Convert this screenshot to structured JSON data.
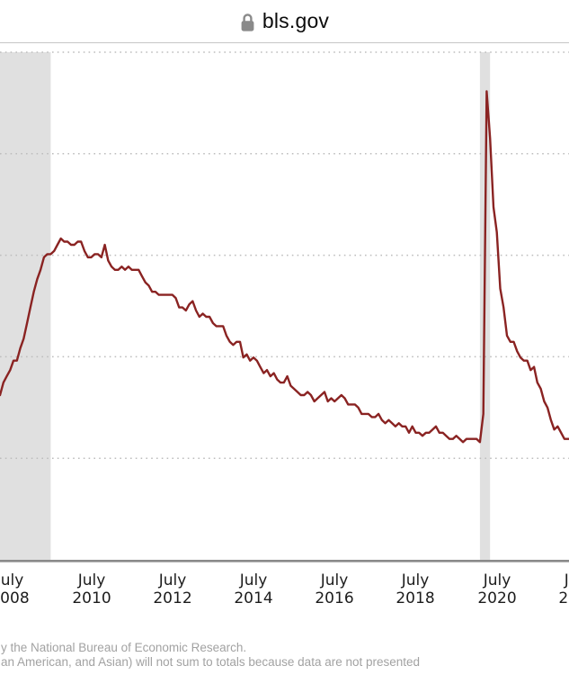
{
  "browser": {
    "url": "bls.gov",
    "lock_icon": "lock-icon",
    "lock_color": "#8a8a8a"
  },
  "chart_data": {
    "type": "line",
    "line_color": "#8a2322",
    "recession_band_color": "#e0e0e0",
    "grid": "horizontal-dotted",
    "legend_position": "none",
    "y_axis_tick_labels_visible": false,
    "frequency": "monthly",
    "start": {
      "year": 2008,
      "month": 4
    },
    "end": {
      "year": 2022,
      "month": 5
    },
    "series": [
      {
        "values": [
          5.0,
          5.4,
          5.6,
          5.8,
          6.1,
          6.1,
          6.5,
          6.8,
          7.3,
          7.8,
          8.3,
          8.7,
          9.0,
          9.4,
          9.5,
          9.5,
          9.6,
          9.8,
          10.0,
          9.9,
          9.9,
          9.8,
          9.8,
          9.9,
          9.9,
          9.6,
          9.4,
          9.4,
          9.5,
          9.5,
          9.4,
          9.8,
          9.3,
          9.1,
          9.0,
          9.0,
          9.1,
          9.0,
          9.1,
          9.0,
          9.0,
          9.0,
          8.8,
          8.6,
          8.5,
          8.3,
          8.3,
          8.2,
          8.2,
          8.2,
          8.2,
          8.2,
          8.1,
          7.8,
          7.8,
          7.7,
          7.9,
          8.0,
          7.7,
          7.5,
          7.6,
          7.5,
          7.5,
          7.3,
          7.2,
          7.2,
          7.2,
          6.9,
          6.7,
          6.6,
          6.7,
          6.7,
          6.2,
          6.3,
          6.1,
          6.2,
          6.1,
          5.9,
          5.7,
          5.8,
          5.6,
          5.7,
          5.5,
          5.4,
          5.4,
          5.6,
          5.3,
          5.2,
          5.1,
          5.0,
          5.0,
          5.1,
          5.0,
          4.8,
          4.9,
          5.0,
          5.1,
          4.8,
          4.9,
          4.8,
          4.9,
          5.0,
          4.9,
          4.7,
          4.7,
          4.7,
          4.6,
          4.4,
          4.4,
          4.4,
          4.3,
          4.3,
          4.4,
          4.2,
          4.1,
          4.2,
          4.1,
          4.0,
          4.1,
          4.0,
          4.0,
          3.8,
          4.0,
          3.8,
          3.8,
          3.7,
          3.8,
          3.8,
          3.9,
          4.0,
          3.8,
          3.8,
          3.7,
          3.6,
          3.6,
          3.7,
          3.6,
          3.5,
          3.6,
          3.6,
          3.6,
          3.6,
          3.5,
          4.4,
          14.7,
          13.2,
          11.0,
          10.2,
          8.4,
          7.8,
          6.9,
          6.7,
          6.7,
          6.4,
          6.2,
          6.1,
          6.1,
          5.8,
          5.9,
          5.4,
          5.2,
          4.8,
          4.6,
          4.2,
          3.9,
          4.0,
          3.8,
          3.6,
          3.6,
          3.6
        ]
      }
    ],
    "recessions": [
      {
        "start": {
          "year": 2007,
          "month": 12
        },
        "end": {
          "year": 2009,
          "month": 6
        }
      },
      {
        "start": {
          "year": 2020,
          "month": 2
        },
        "end": {
          "year": 2020,
          "month": 4
        }
      }
    ],
    "x_ticks": [
      {
        "month": "July",
        "year": "2008"
      },
      {
        "month": "July",
        "year": "2010"
      },
      {
        "month": "July",
        "year": "2012"
      },
      {
        "month": "July",
        "year": "2014"
      },
      {
        "month": "July",
        "year": "2016"
      },
      {
        "month": "July",
        "year": "2018"
      },
      {
        "month": "July",
        "year": "2020"
      },
      {
        "month": "July",
        "year": "2022"
      }
    ]
  },
  "footnotes": [
    "y the National Bureau of Economic Research.",
    "an American, and Asian) will not sum to totals because data are not presented"
  ]
}
